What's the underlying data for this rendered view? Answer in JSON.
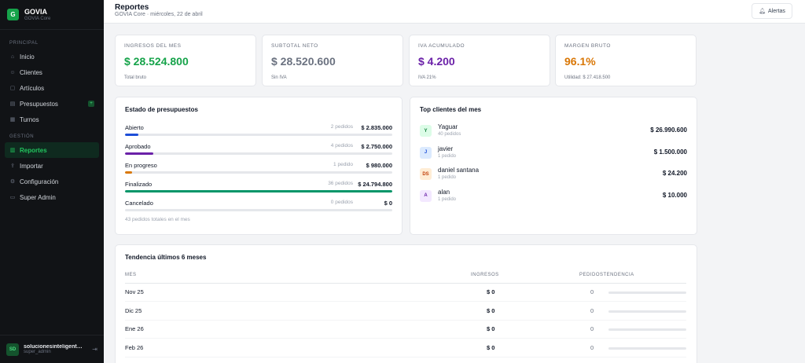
{
  "brand": {
    "logo_letter": "G",
    "name": "GOVIA",
    "sub": "GOVIA Core"
  },
  "sidebar": {
    "section_principal": "PRINCIPAL",
    "section_gestion": "GESTIÓN",
    "items_principal": [
      {
        "label": "Inicio",
        "icon": "home-icon"
      },
      {
        "label": "Clientes",
        "icon": "users-icon"
      },
      {
        "label": "Artículos",
        "icon": "box-icon"
      },
      {
        "label": "Presupuestos",
        "icon": "document-icon",
        "badge": "+"
      },
      {
        "label": "Turnos",
        "icon": "calendar-icon"
      }
    ],
    "items_gestion": [
      {
        "label": "Reportes",
        "icon": "bar-chart-icon",
        "active": true
      },
      {
        "label": "Importar",
        "icon": "upload-icon"
      },
      {
        "label": "Configuración",
        "icon": "gear-icon"
      },
      {
        "label": "Super Admin",
        "icon": "monitor-icon"
      }
    ],
    "user": {
      "initials": "SD",
      "name": "solucionesinteligente...",
      "role": "super_admin"
    }
  },
  "header": {
    "title": "Reportes",
    "subtitle": "GOVIA Core · miércoles, 22 de abril",
    "alerts_label": "Alertas"
  },
  "kpis": [
    {
      "label": "INGRESOS DEL MES",
      "value": "$ 28.524.800",
      "note": "Total bruto",
      "color": "#16a34a"
    },
    {
      "label": "SUBTOTAL NETO",
      "value": "$ 28.520.600",
      "note": "Sin IVA",
      "color": "#6b7280"
    },
    {
      "label": "IVA ACUMULADO",
      "value": "$ 4.200",
      "note": "IVA 21%",
      "color": "#6b21a8"
    },
    {
      "label": "MARGEN BRUTO",
      "value": "96.1%",
      "note": "Utilidad: $ 27.418.500",
      "color": "#d97706"
    }
  ],
  "estado": {
    "title": "Estado de presupuestos",
    "rows": [
      {
        "name": "Abierto",
        "count": "2 pedidos",
        "amount": "$ 2.835.000",
        "fill": 0.05,
        "color": "#1d4ed8"
      },
      {
        "name": "Aprobado",
        "count": "4 pedidos",
        "amount": "$ 2.750.000",
        "fill": 0.105,
        "color": "#6b21a8"
      },
      {
        "name": "En progreso",
        "count": "1 pedido",
        "amount": "$ 980.000",
        "fill": 0.025,
        "color": "#d97706"
      },
      {
        "name": "Finalizado",
        "count": "36 pedidos",
        "amount": "$ 24.794.800",
        "fill": 1.0,
        "color": "#059669"
      },
      {
        "name": "Cancelado",
        "count": "0 pedidos",
        "amount": "$ 0",
        "fill": 0,
        "color": "#9ca3af"
      }
    ],
    "total": "43 pedidos totales en el mes"
  },
  "top_clientes": {
    "title": "Top clientes del mes",
    "rows": [
      {
        "initials": "Y",
        "name": "Yaguar",
        "orders": "40 pedidos",
        "amount": "$ 26.990.600",
        "bg": "#dcfce7",
        "fg": "#15803d"
      },
      {
        "initials": "J",
        "name": "javier",
        "orders": "1 pedido",
        "amount": "$ 1.500.000",
        "bg": "#dbeafe",
        "fg": "#1d4ed8"
      },
      {
        "initials": "DS",
        "name": "daniel santana",
        "orders": "1 pedido",
        "amount": "$ 24.200",
        "bg": "#ffedd5",
        "fg": "#c2410c"
      },
      {
        "initials": "A",
        "name": "alan",
        "orders": "1 pedido",
        "amount": "$ 10.000",
        "bg": "#f3e8ff",
        "fg": "#6b21a8"
      }
    ]
  },
  "tendencia": {
    "title": "Tendencia últimos 6 meses",
    "col_mes": "MES",
    "col_ingresos": "INGRESOS",
    "col_pedidos_tendencia": "PEDIDOSTENDENCIA",
    "rows": [
      {
        "mes": "Nov 25",
        "ingresos": "$ 0",
        "pedidos": "0"
      },
      {
        "mes": "Dic 25",
        "ingresos": "$ 0",
        "pedidos": "0"
      },
      {
        "mes": "Ene 26",
        "ingresos": "$ 0",
        "pedidos": "0"
      },
      {
        "mes": "Feb 26",
        "ingresos": "$ 0",
        "pedidos": "0"
      }
    ]
  }
}
